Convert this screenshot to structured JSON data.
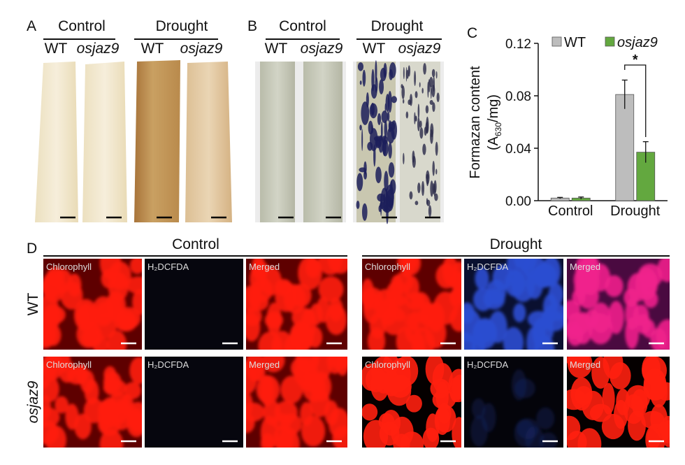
{
  "panel_a": {
    "label": "A",
    "groups": [
      {
        "title": "Control",
        "lines": [
          "WT",
          "osjaz9"
        ]
      },
      {
        "title": "Drought",
        "lines": [
          "WT",
          "osjaz9"
        ]
      }
    ]
  },
  "panel_b": {
    "label": "B",
    "groups": [
      {
        "title": "Control",
        "lines": [
          "WT",
          "osjaz9"
        ]
      },
      {
        "title": "Drought",
        "lines": [
          "WT",
          "osjaz9"
        ]
      }
    ]
  },
  "chart_data": {
    "type": "bar",
    "panel_label": "C",
    "y_label": "Formazan content",
    "y_label_unit": {
      "prefix": "(A",
      "subscript": "630",
      "suffix": "/mg)"
    },
    "categories": [
      "Control",
      "Drought"
    ],
    "series": [
      {
        "name": "WT",
        "color": "#bdbdbd",
        "values": [
          0.002,
          0.081
        ],
        "errors": [
          0.0005,
          0.011
        ]
      },
      {
        "name": "osjaz9",
        "color": "#63a83f",
        "values": [
          0.002,
          0.037
        ],
        "errors": [
          0.0008,
          0.008
        ]
      }
    ],
    "ylim": [
      0,
      0.12
    ],
    "yticks": [
      {
        "value": 0,
        "label": "0.00"
      },
      {
        "value": 0.04,
        "label": "0.04"
      },
      {
        "value": 0.08,
        "label": "0.08"
      },
      {
        "value": 0.12,
        "label": "0.12"
      }
    ],
    "annotations": [
      "*"
    ]
  },
  "panel_d": {
    "label": "D",
    "groups": [
      "Control",
      "Drought"
    ],
    "rows": [
      "WT",
      "osjaz9"
    ],
    "channels": [
      "Chlorophyll",
      "H₂DCFDA",
      "Merged"
    ]
  }
}
